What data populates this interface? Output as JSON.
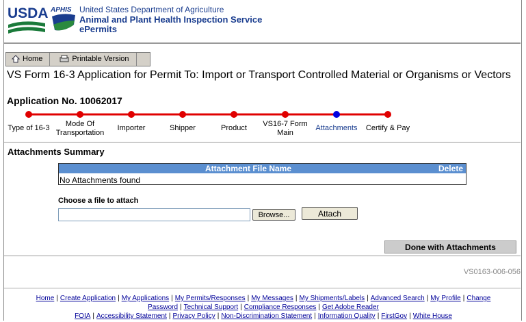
{
  "header": {
    "usda": "USDA",
    "aphis": "APHIS",
    "department": "United States Department of Agriculture",
    "service": "Animal and Plant Health Inspection Service",
    "app": "ePermits"
  },
  "toolbar": [
    "Home",
    "Printable Version"
  ],
  "title": "VS Form 16-3 Application for Permit To: Import or Transport Controlled Material or Organisms or Vectors",
  "application_no": "Application No. 10062017",
  "steps": [
    {
      "label": "Type of 16-3",
      "current": false
    },
    {
      "label": "Mode Of Transportation",
      "current": false
    },
    {
      "label": "Importer",
      "current": false
    },
    {
      "label": "Shipper",
      "current": false
    },
    {
      "label": "Product",
      "current": false
    },
    {
      "label": "VS16-7 Form Main",
      "current": false
    },
    {
      "label": "Attachments",
      "current": true
    },
    {
      "label": "Certify & Pay",
      "current": false
    }
  ],
  "section_title": "Attachments Summary",
  "table": {
    "headers": [
      "Attachment File Name",
      "Delete"
    ],
    "empty": "No Attachments found"
  },
  "file_label": "Choose a file to attach",
  "browse": "Browse...",
  "attach": "Attach",
  "done": "Done with Attachments",
  "form_code": "VS0163-006-056",
  "footer": {
    "separator": "|",
    "links": [
      "Home",
      "Create Application",
      "My Applications",
      "My Permits/Responses",
      "My Messages",
      "My Shipments/Labels",
      "Advanced Search",
      "My Profile",
      "Change Password",
      "Technical Support",
      "Compliance Responses",
      "Get Adobe Reader"
    ],
    "links2": [
      "FOIA",
      "Accessibility Statement",
      "Privacy Policy",
      "Non-Discrimination Statement",
      "Information Quality",
      "FirstGov",
      "White House"
    ]
  }
}
